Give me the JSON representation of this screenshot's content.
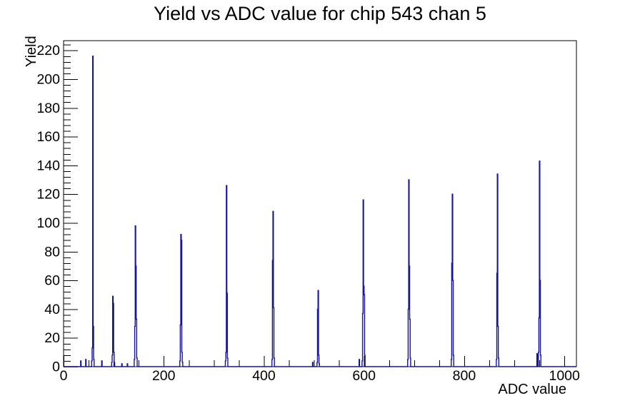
{
  "chart_data": {
    "type": "bar",
    "title": "Yield vs ADC value for chip 543 chan 5",
    "xlabel": "ADC value",
    "ylabel": "Yield",
    "xlim": [
      0,
      1024
    ],
    "ylim": [
      0,
      226.8
    ],
    "x_major_ticks": [
      0,
      200,
      400,
      600,
      800,
      1000
    ],
    "x_minor_step": 50,
    "y_major_ticks": [
      0,
      20,
      40,
      60,
      80,
      100,
      120,
      140,
      160,
      180,
      200,
      220
    ],
    "y_minor_step": 4,
    "bin_width": 1,
    "grid": "off",
    "legend": "none",
    "line_color": "#15159b",
    "axis_color": "#000000",
    "peaks": [
      {
        "adc": 58,
        "yield": 216
      },
      {
        "adc": 98,
        "yield": 49
      },
      {
        "adc": 143,
        "yield": 98
      },
      {
        "adc": 234,
        "yield": 92
      },
      {
        "adc": 325,
        "yield": 126
      },
      {
        "adc": 418,
        "yield": 108
      },
      {
        "adc": 508,
        "yield": 53
      },
      {
        "adc": 598,
        "yield": 116
      },
      {
        "adc": 689,
        "yield": 130
      },
      {
        "adc": 776,
        "yield": 120
      },
      {
        "adc": 866,
        "yield": 134
      },
      {
        "adc": 950,
        "yield": 143
      }
    ],
    "bins": [
      [
        34,
        4
      ],
      [
        44,
        5
      ],
      [
        56,
        4
      ],
      [
        57,
        13
      ],
      [
        58,
        216
      ],
      [
        59,
        28
      ],
      [
        60,
        5
      ],
      [
        76,
        4
      ],
      [
        96,
        3
      ],
      [
        97,
        8
      ],
      [
        98,
        49
      ],
      [
        99,
        44
      ],
      [
        100,
        10
      ],
      [
        101,
        3
      ],
      [
        116,
        2
      ],
      [
        127,
        2
      ],
      [
        141,
        5
      ],
      [
        142,
        28
      ],
      [
        143,
        98
      ],
      [
        144,
        70
      ],
      [
        145,
        33
      ],
      [
        146,
        6
      ],
      [
        232,
        4
      ],
      [
        233,
        29
      ],
      [
        234,
        92
      ],
      [
        235,
        88
      ],
      [
        236,
        10
      ],
      [
        237,
        3
      ],
      [
        323,
        4
      ],
      [
        324,
        10
      ],
      [
        325,
        126
      ],
      [
        326,
        51
      ],
      [
        327,
        6
      ],
      [
        416,
        5
      ],
      [
        417,
        74
      ],
      [
        418,
        108
      ],
      [
        419,
        41
      ],
      [
        420,
        6
      ],
      [
        497,
        3
      ],
      [
        506,
        3
      ],
      [
        507,
        40
      ],
      [
        508,
        53
      ],
      [
        509,
        8
      ],
      [
        510,
        2
      ],
      [
        590,
        5
      ],
      [
        596,
        4
      ],
      [
        597,
        37
      ],
      [
        598,
        116
      ],
      [
        599,
        56
      ],
      [
        600,
        50
      ],
      [
        601,
        8
      ],
      [
        687,
        5
      ],
      [
        688,
        40
      ],
      [
        689,
        130
      ],
      [
        690,
        70
      ],
      [
        691,
        33
      ],
      [
        692,
        6
      ],
      [
        774,
        5
      ],
      [
        775,
        72
      ],
      [
        776,
        120
      ],
      [
        777,
        60
      ],
      [
        778,
        8
      ],
      [
        864,
        5
      ],
      [
        865,
        65
      ],
      [
        866,
        134
      ],
      [
        867,
        28
      ],
      [
        868,
        6
      ],
      [
        945,
        9
      ],
      [
        948,
        10
      ],
      [
        949,
        34
      ],
      [
        950,
        143
      ],
      [
        951,
        60
      ],
      [
        952,
        8
      ]
    ]
  }
}
